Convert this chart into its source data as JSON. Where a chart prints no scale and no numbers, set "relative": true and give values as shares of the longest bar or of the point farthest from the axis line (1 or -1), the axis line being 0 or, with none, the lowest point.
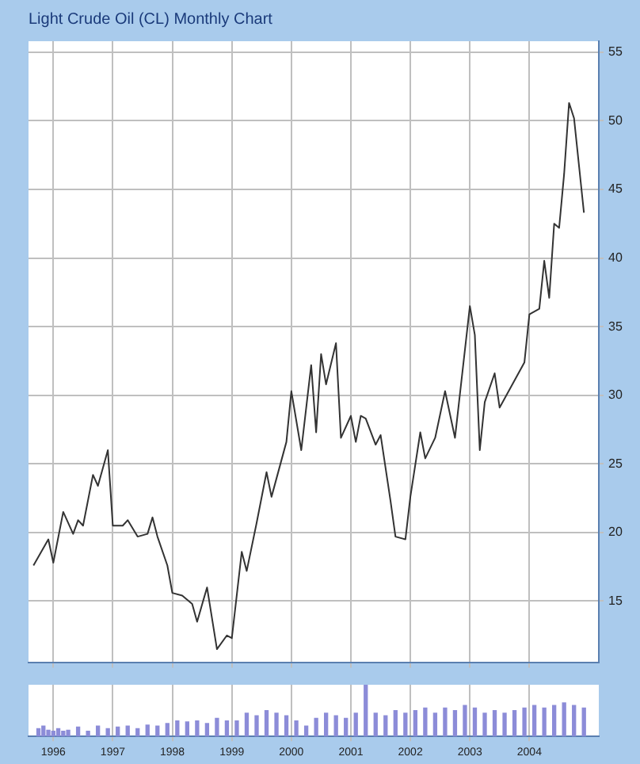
{
  "chart_data": [
    {
      "type": "line",
      "title": "Light Crude Oil (CL) Monthly Chart",
      "xlim": [
        "1995-08",
        "2005-03"
      ],
      "xticks": [
        "1996",
        "1997",
        "1998",
        "1999",
        "2000",
        "2001",
        "2002",
        "2003",
        "2004"
      ],
      "ylim": [
        10.5,
        55.8
      ],
      "yticks": [
        15,
        20,
        25,
        30,
        35,
        40,
        45,
        50,
        55
      ],
      "tick_labels": "y",
      "grid": true,
      "legend": false,
      "series": [
        {
          "color": "#333333",
          "x": [
            "1995-09",
            "1995-12",
            "1996-01",
            "1996-03",
            "1996-05",
            "1996-06",
            "1996-07",
            "1996-09",
            "1996-10",
            "1996-12",
            "1997-01",
            "1997-03",
            "1997-04",
            "1997-06",
            "1997-08",
            "1997-09",
            "1997-10",
            "1997-12",
            "1998-01",
            "1998-03",
            "1998-05",
            "1998-06",
            "1998-08",
            "1998-10",
            "1998-12",
            "1999-01",
            "1999-03",
            "1999-04",
            "1999-06",
            "1999-08",
            "1999-09",
            "1999-12",
            "2000-01",
            "2000-03",
            "2000-05",
            "2000-06",
            "2000-07",
            "2000-08",
            "2000-10",
            "2000-11",
            "2001-01",
            "2001-02",
            "2001-03",
            "2001-04",
            "2001-06",
            "2001-07",
            "2001-09",
            "2001-10",
            "2001-12",
            "2002-01",
            "2002-03",
            "2002-04",
            "2002-06",
            "2002-08",
            "2002-10",
            "2003-01",
            "2003-02",
            "2003-03",
            "2003-04",
            "2003-06",
            "2003-07",
            "2003-12",
            "2004-01",
            "2004-03",
            "2004-04",
            "2004-05",
            "2004-06",
            "2004-07",
            "2004-08",
            "2004-09",
            "2004-10",
            "2004-12"
          ],
          "values": [
            17.6,
            19.5,
            17.8,
            21.5,
            19.9,
            20.9,
            20.5,
            24.2,
            23.4,
            26.0,
            20.5,
            20.5,
            20.9,
            19.7,
            19.9,
            21.1,
            19.7,
            17.6,
            15.6,
            15.4,
            14.8,
            13.5,
            16.0,
            11.5,
            12.5,
            12.3,
            18.6,
            17.2,
            20.7,
            24.4,
            22.6,
            26.6,
            30.3,
            26.0,
            32.2,
            27.3,
            33.0,
            30.8,
            33.8,
            26.9,
            28.5,
            26.6,
            28.5,
            28.3,
            26.4,
            27.1,
            22.3,
            19.7,
            19.5,
            22.6,
            27.3,
            25.4,
            26.9,
            30.3,
            26.9,
            36.5,
            34.4,
            26.0,
            29.5,
            31.6,
            29.1,
            32.4,
            35.9,
            36.3,
            39.8,
            37.1,
            42.5,
            42.2,
            46.1,
            51.3,
            50.2,
            43.3
          ]
        }
      ]
    },
    {
      "type": "bar",
      "relative": true,
      "xlim": [
        "1995-08",
        "2005-03"
      ],
      "xticks": [
        "1996",
        "1997",
        "1998",
        "1999",
        "2000",
        "2001",
        "2002",
        "2003",
        "2004"
      ],
      "tick_labels": "x",
      "grid": "x",
      "legend": false,
      "series": [
        {
          "color": "#8c8cd8",
          "x": [
            "1995-10",
            "1995-11",
            "1995-12",
            "1996-01",
            "1996-02",
            "1996-03",
            "1996-04",
            "1996-06",
            "1996-08",
            "1996-10",
            "1996-12",
            "1997-02",
            "1997-04",
            "1997-06",
            "1997-08",
            "1997-10",
            "1997-12",
            "1998-02",
            "1998-04",
            "1998-06",
            "1998-08",
            "1998-10",
            "1998-12",
            "1999-02",
            "1999-04",
            "1999-06",
            "1999-08",
            "1999-10",
            "1999-12",
            "2000-02",
            "2000-04",
            "2000-06",
            "2000-08",
            "2000-10",
            "2000-12",
            "2001-02",
            "2001-04",
            "2001-06",
            "2001-08",
            "2001-10",
            "2001-12",
            "2002-02",
            "2002-04",
            "2002-06",
            "2002-08",
            "2002-10",
            "2002-12",
            "2003-02",
            "2003-04",
            "2003-06",
            "2003-08",
            "2003-10",
            "2003-12",
            "2004-02",
            "2004-04",
            "2004-06",
            "2004-08",
            "2004-10",
            "2004-12"
          ],
          "values": [
            0.15,
            0.2,
            0.12,
            0.1,
            0.15,
            0.1,
            0.12,
            0.18,
            0.1,
            0.2,
            0.15,
            0.18,
            0.2,
            0.15,
            0.22,
            0.2,
            0.25,
            0.3,
            0.28,
            0.3,
            0.25,
            0.35,
            0.3,
            0.3,
            0.45,
            0.4,
            0.5,
            0.45,
            0.4,
            0.3,
            0.2,
            0.35,
            0.45,
            0.4,
            0.35,
            0.45,
            1.0,
            0.45,
            0.4,
            0.5,
            0.45,
            0.5,
            0.55,
            0.45,
            0.55,
            0.5,
            0.6,
            0.55,
            0.45,
            0.5,
            0.45,
            0.5,
            0.55,
            0.6,
            0.55,
            0.6,
            0.65,
            0.6,
            0.55
          ]
        }
      ]
    }
  ]
}
